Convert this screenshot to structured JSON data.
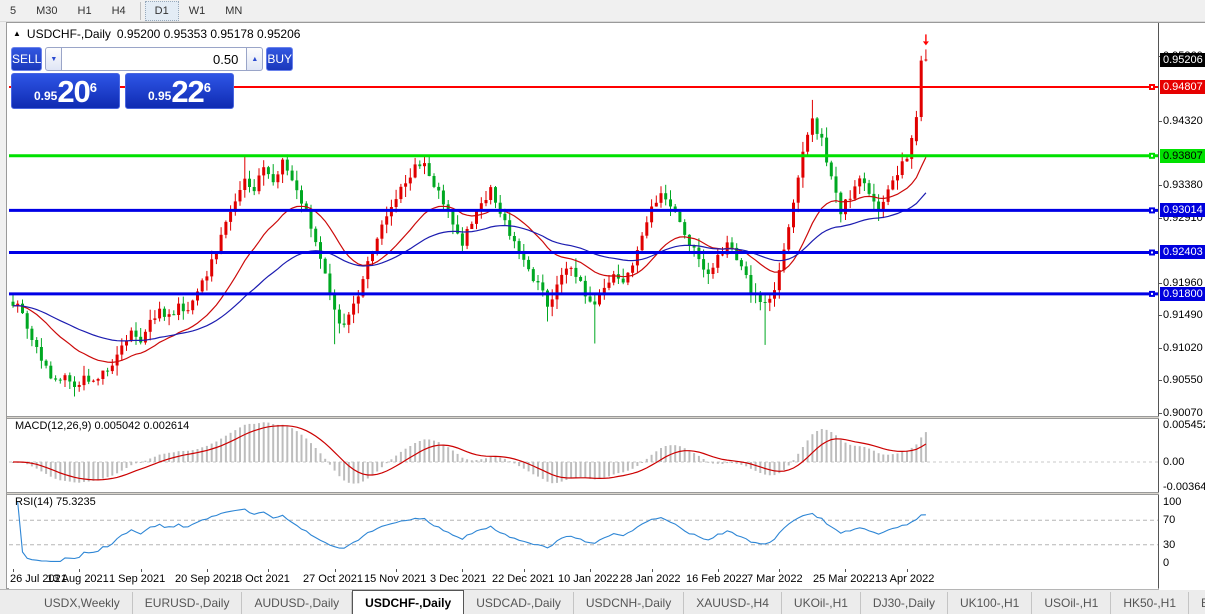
{
  "toolbar": {
    "timeframes": [
      {
        "label": "5",
        "active": false
      },
      {
        "label": "M30",
        "active": false
      },
      {
        "label": "H1",
        "active": false
      },
      {
        "label": "H4",
        "active": false
      },
      {
        "label": "D1",
        "active": true
      },
      {
        "label": "W1",
        "active": false
      },
      {
        "label": "MN",
        "active": false
      }
    ]
  },
  "chart": {
    "title_symbol": "USDCHF-,Daily",
    "title_ohlc": "0.95200 0.95353 0.95178 0.95206",
    "triangle_icon": "▲"
  },
  "quote": {
    "sell_label": "SELL",
    "buy_label": "BUY",
    "volume": "0.50",
    "spin_down": "▼",
    "spin_up": "▲",
    "sell_small": "0.95",
    "sell_big": "20",
    "sell_sup": "6",
    "buy_small": "0.95",
    "buy_big": "22",
    "buy_sup": "6"
  },
  "chart_data": {
    "type": "candlestick",
    "symbol": "USDCHF-,Daily",
    "candle_count": 194,
    "colors": {
      "up": "#e00000",
      "down": "#00a822",
      "macd_hist": "#bdbdbd",
      "macd_signal": "#cc0000",
      "rsi": "#2e86d5",
      "ma_fast": "#cc0a0a",
      "ma_slow": "#1c1cb0"
    },
    "price_path_anchors": [
      [
        0,
        0.9168
      ],
      [
        2,
        0.915
      ],
      [
        4,
        0.9118
      ],
      [
        6,
        0.9085
      ],
      [
        9,
        0.9052
      ],
      [
        11,
        0.9062
      ],
      [
        13,
        0.9046
      ],
      [
        15,
        0.9058
      ],
      [
        17,
        0.9049
      ],
      [
        19,
        0.9066
      ],
      [
        21,
        0.9082
      ],
      [
        23,
        0.9106
      ],
      [
        25,
        0.9126
      ],
      [
        27,
        0.9113
      ],
      [
        29,
        0.9136
      ],
      [
        31,
        0.9156
      ],
      [
        33,
        0.9148
      ],
      [
        35,
        0.9163
      ],
      [
        37,
        0.9156
      ],
      [
        39,
        0.9181
      ],
      [
        41,
        0.9212
      ],
      [
        43,
        0.9246
      ],
      [
        45,
        0.9287
      ],
      [
        47,
        0.9321
      ],
      [
        49,
        0.9346
      ],
      [
        51,
        0.9331
      ],
      [
        53,
        0.9361
      ],
      [
        55,
        0.9341
      ],
      [
        57,
        0.9371
      ],
      [
        59,
        0.9349
      ],
      [
        61,
        0.9318
      ],
      [
        63,
        0.9278
      ],
      [
        65,
        0.9238
      ],
      [
        67,
        0.9178
      ],
      [
        69,
        0.9132
      ],
      [
        71,
        0.9152
      ],
      [
        73,
        0.9182
      ],
      [
        75,
        0.9222
      ],
      [
        77,
        0.9262
      ],
      [
        79,
        0.9292
      ],
      [
        81,
        0.9322
      ],
      [
        83,
        0.9346
      ],
      [
        85,
        0.9366
      ],
      [
        87,
        0.9371
      ],
      [
        89,
        0.9341
      ],
      [
        91,
        0.9311
      ],
      [
        93,
        0.9281
      ],
      [
        95,
        0.9256
      ],
      [
        97,
        0.9286
      ],
      [
        99,
        0.9311
      ],
      [
        101,
        0.9331
      ],
      [
        103,
        0.9301
      ],
      [
        105,
        0.9271
      ],
      [
        107,
        0.9241
      ],
      [
        109,
        0.9216
      ],
      [
        111,
        0.9191
      ],
      [
        113,
        0.9166
      ],
      [
        115,
        0.9191
      ],
      [
        117,
        0.9221
      ],
      [
        119,
        0.9206
      ],
      [
        121,
        0.9181
      ],
      [
        123,
        0.9161
      ],
      [
        125,
        0.9186
      ],
      [
        127,
        0.9211
      ],
      [
        129,
        0.9191
      ],
      [
        131,
        0.9221
      ],
      [
        133,
        0.9261
      ],
      [
        135,
        0.9301
      ],
      [
        137,
        0.9331
      ],
      [
        139,
        0.9311
      ],
      [
        141,
        0.9281
      ],
      [
        143,
        0.9256
      ],
      [
        145,
        0.9231
      ],
      [
        147,
        0.9211
      ],
      [
        149,
        0.9231
      ],
      [
        151,
        0.9256
      ],
      [
        153,
        0.9231
      ],
      [
        155,
        0.9201
      ],
      [
        157,
        0.9176
      ],
      [
        159,
        0.9161
      ],
      [
        161,
        0.9191
      ],
      [
        163,
        0.9241
      ],
      [
        165,
        0.9311
      ],
      [
        167,
        0.9391
      ],
      [
        169,
        0.9431
      ],
      [
        171,
        0.9401
      ],
      [
        173,
        0.9346
      ],
      [
        175,
        0.9301
      ],
      [
        177,
        0.9321
      ],
      [
        179,
        0.9351
      ],
      [
        181,
        0.9321
      ],
      [
        183,
        0.9306
      ],
      [
        185,
        0.9331
      ],
      [
        187,
        0.9356
      ],
      [
        189,
        0.9381
      ],
      [
        190,
        0.9401
      ],
      [
        191,
        0.9437
      ],
      [
        192,
        0.9518
      ],
      [
        193,
        0.95206
      ]
    ],
    "candle_overrides": {
      "13": {
        "l": 0.9031
      },
      "49": {
        "h": 0.938
      },
      "68": {
        "l": 0.9107
      },
      "87": {
        "h": 0.9381
      },
      "113": {
        "l": 0.914
      },
      "123": {
        "l": 0.9108
      },
      "159": {
        "l": 0.9106
      },
      "169": {
        "h": 0.9462
      },
      "191": {
        "o": 0.9402,
        "h": 0.9446,
        "l": 0.9396,
        "c": 0.9437
      },
      "192": {
        "o": 0.9437,
        "h": 0.9526,
        "l": 0.9431,
        "c": 0.9519
      },
      "193": {
        "o": 0.952,
        "h": 0.95353,
        "l": 0.95178,
        "c": 0.95206
      }
    },
    "moving_averages": [
      {
        "period": 21
      },
      {
        "period": 52
      }
    ],
    "horizontal_lines": [
      {
        "label": "0.94807",
        "price": 0.94807,
        "color": "#ff0000",
        "width": 2,
        "badge_bg": "#e60000",
        "badge_fg": "#ffffff"
      },
      {
        "label": "0.93807",
        "price": 0.93807,
        "color": "#00e100",
        "width": 3,
        "badge_bg": "#00e100",
        "badge_fg": "#000000"
      },
      {
        "label": "0.93014",
        "price": 0.93014,
        "color": "#0000e6",
        "width": 3,
        "badge_bg": "#0000dd",
        "badge_fg": "#ffffff"
      },
      {
        "label": "0.92403",
        "price": 0.92403,
        "color": "#0000e6",
        "width": 3,
        "badge_bg": "#0000dd",
        "badge_fg": "#ffffff"
      },
      {
        "label": "0.91800",
        "price": 0.918,
        "color": "#0000e6",
        "width": 3,
        "badge_bg": "#0000dd",
        "badge_fg": "#ffffff"
      }
    ],
    "current_price": {
      "label": "0.95206",
      "price": 0.95206,
      "badge_bg": "#000000",
      "badge_fg": "#ffffff"
    },
    "signal_arrow": {
      "index": 193,
      "price": 0.9547,
      "color": "#ff0000"
    },
    "y_axis_ticks": [
      "0.95260",
      "0.94320",
      "0.93380",
      "0.92910",
      "0.91960",
      "0.91490",
      "0.91020",
      "0.90550",
      "0.90070"
    ],
    "x_axis_labels": [
      "26 Jul 2021",
      "13 Aug 2021",
      "1 Sep 2021",
      "20 Sep 2021",
      "8 Oct 2021",
      "27 Oct 2021",
      "15 Nov 2021",
      "3 Dec 2021",
      "22 Dec 2021",
      "10 Jan 2022",
      "28 Jan 2022",
      "16 Feb 2022",
      "7 Mar 2022",
      "25 Mar 2022",
      "13 Apr 2022"
    ],
    "indicators": {
      "macd": {
        "label": "MACD(12,26,9) 0.005042 0.002614",
        "fast": 12,
        "slow": 26,
        "signal": 9,
        "axis_labels": [
          "0.005452",
          "0.00",
          "-0.00364"
        ]
      },
      "rsi": {
        "label": "RSI(14) 75.3235",
        "period": 14,
        "levels": [
          70,
          30
        ],
        "axis_labels": [
          "100",
          "70",
          "30",
          "0"
        ]
      }
    }
  },
  "tabs": {
    "items": [
      "USDX,Weekly",
      "EURUSD-,Daily",
      "AUDUSD-,Daily",
      "USDCHF-,Daily",
      "USDCAD-,Daily",
      "USDCNH-,Daily",
      "XAUUSD-,H4",
      "UKOil-,H1",
      "DJ30-,Daily",
      "UK100-,H1",
      "USOil-,H1",
      "HK50-,H1",
      "EU"
    ],
    "active_index": 3,
    "scroll_left": "◂",
    "scroll_right": "▸"
  }
}
